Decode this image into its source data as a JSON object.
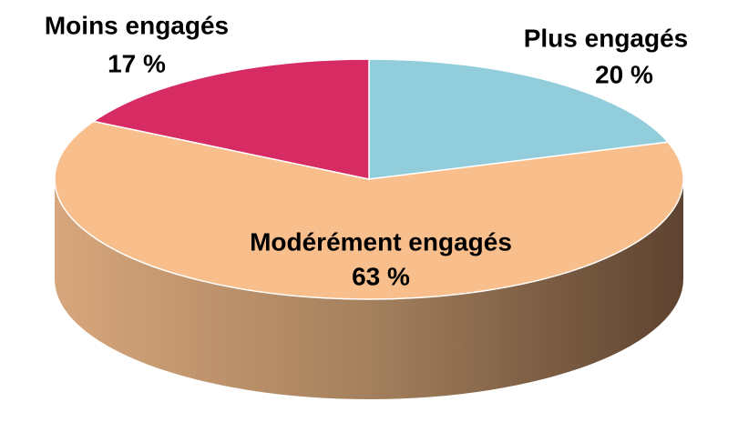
{
  "chart_data": {
    "type": "pie",
    "categories": [
      "Plus engagés",
      "Modérément engagés",
      "Moins engagés"
    ],
    "values": [
      20,
      63,
      17
    ],
    "value_labels": [
      "20 %",
      "63 %",
      "17 %"
    ],
    "colors": [
      "#92CDDC",
      "#F8BE8C",
      "#D62B63"
    ]
  }
}
